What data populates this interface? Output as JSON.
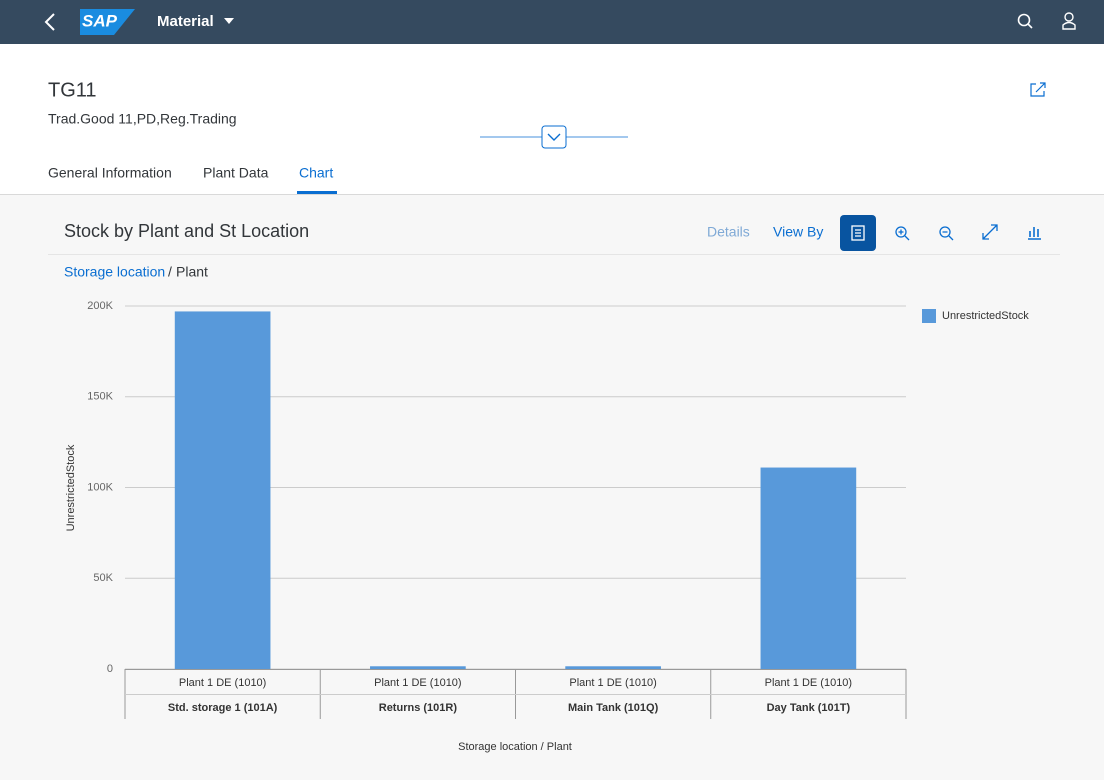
{
  "shell": {
    "logo": "SAP",
    "app_title": "Material"
  },
  "object": {
    "title": "TG11",
    "subtitle": "Trad.Good 11,PD,Reg.Trading"
  },
  "tabs": [
    "General Information",
    "Plant Data",
    "Chart"
  ],
  "toolbar": {
    "details": "Details",
    "view_by": "View By"
  },
  "breadcrumb": {
    "link": "Storage location",
    "separator": "/",
    "current": "Plant"
  },
  "chart_data": {
    "type": "bar",
    "title": "Stock by Plant and St Location",
    "categories": [
      "Std. storage 1 (101A)",
      "Returns (101R)",
      "Main Tank (101Q)",
      "Day Tank (101T)"
    ],
    "sub_categories": [
      "Plant 1 DE (1010)",
      "Plant 1 DE (1010)",
      "Plant 1 DE (1010)",
      "Plant 1 DE (1010)"
    ],
    "series": [
      {
        "name": "UnrestrictedStock",
        "color": "#5899da",
        "values": [
          197000,
          1500,
          1500,
          111000
        ]
      }
    ],
    "y_label": "UnrestrictedStock",
    "x_label": "Storage location / Plant",
    "ylim": [
      0,
      200000
    ],
    "yticks": [
      0,
      {
        "value": 50000,
        "label": "50K"
      },
      {
        "value": 100000,
        "label": "100K"
      },
      {
        "value": 150000,
        "label": "150K"
      },
      {
        "value": 200000,
        "label": "200K"
      }
    ],
    "grid": true,
    "legend": "top-right"
  }
}
